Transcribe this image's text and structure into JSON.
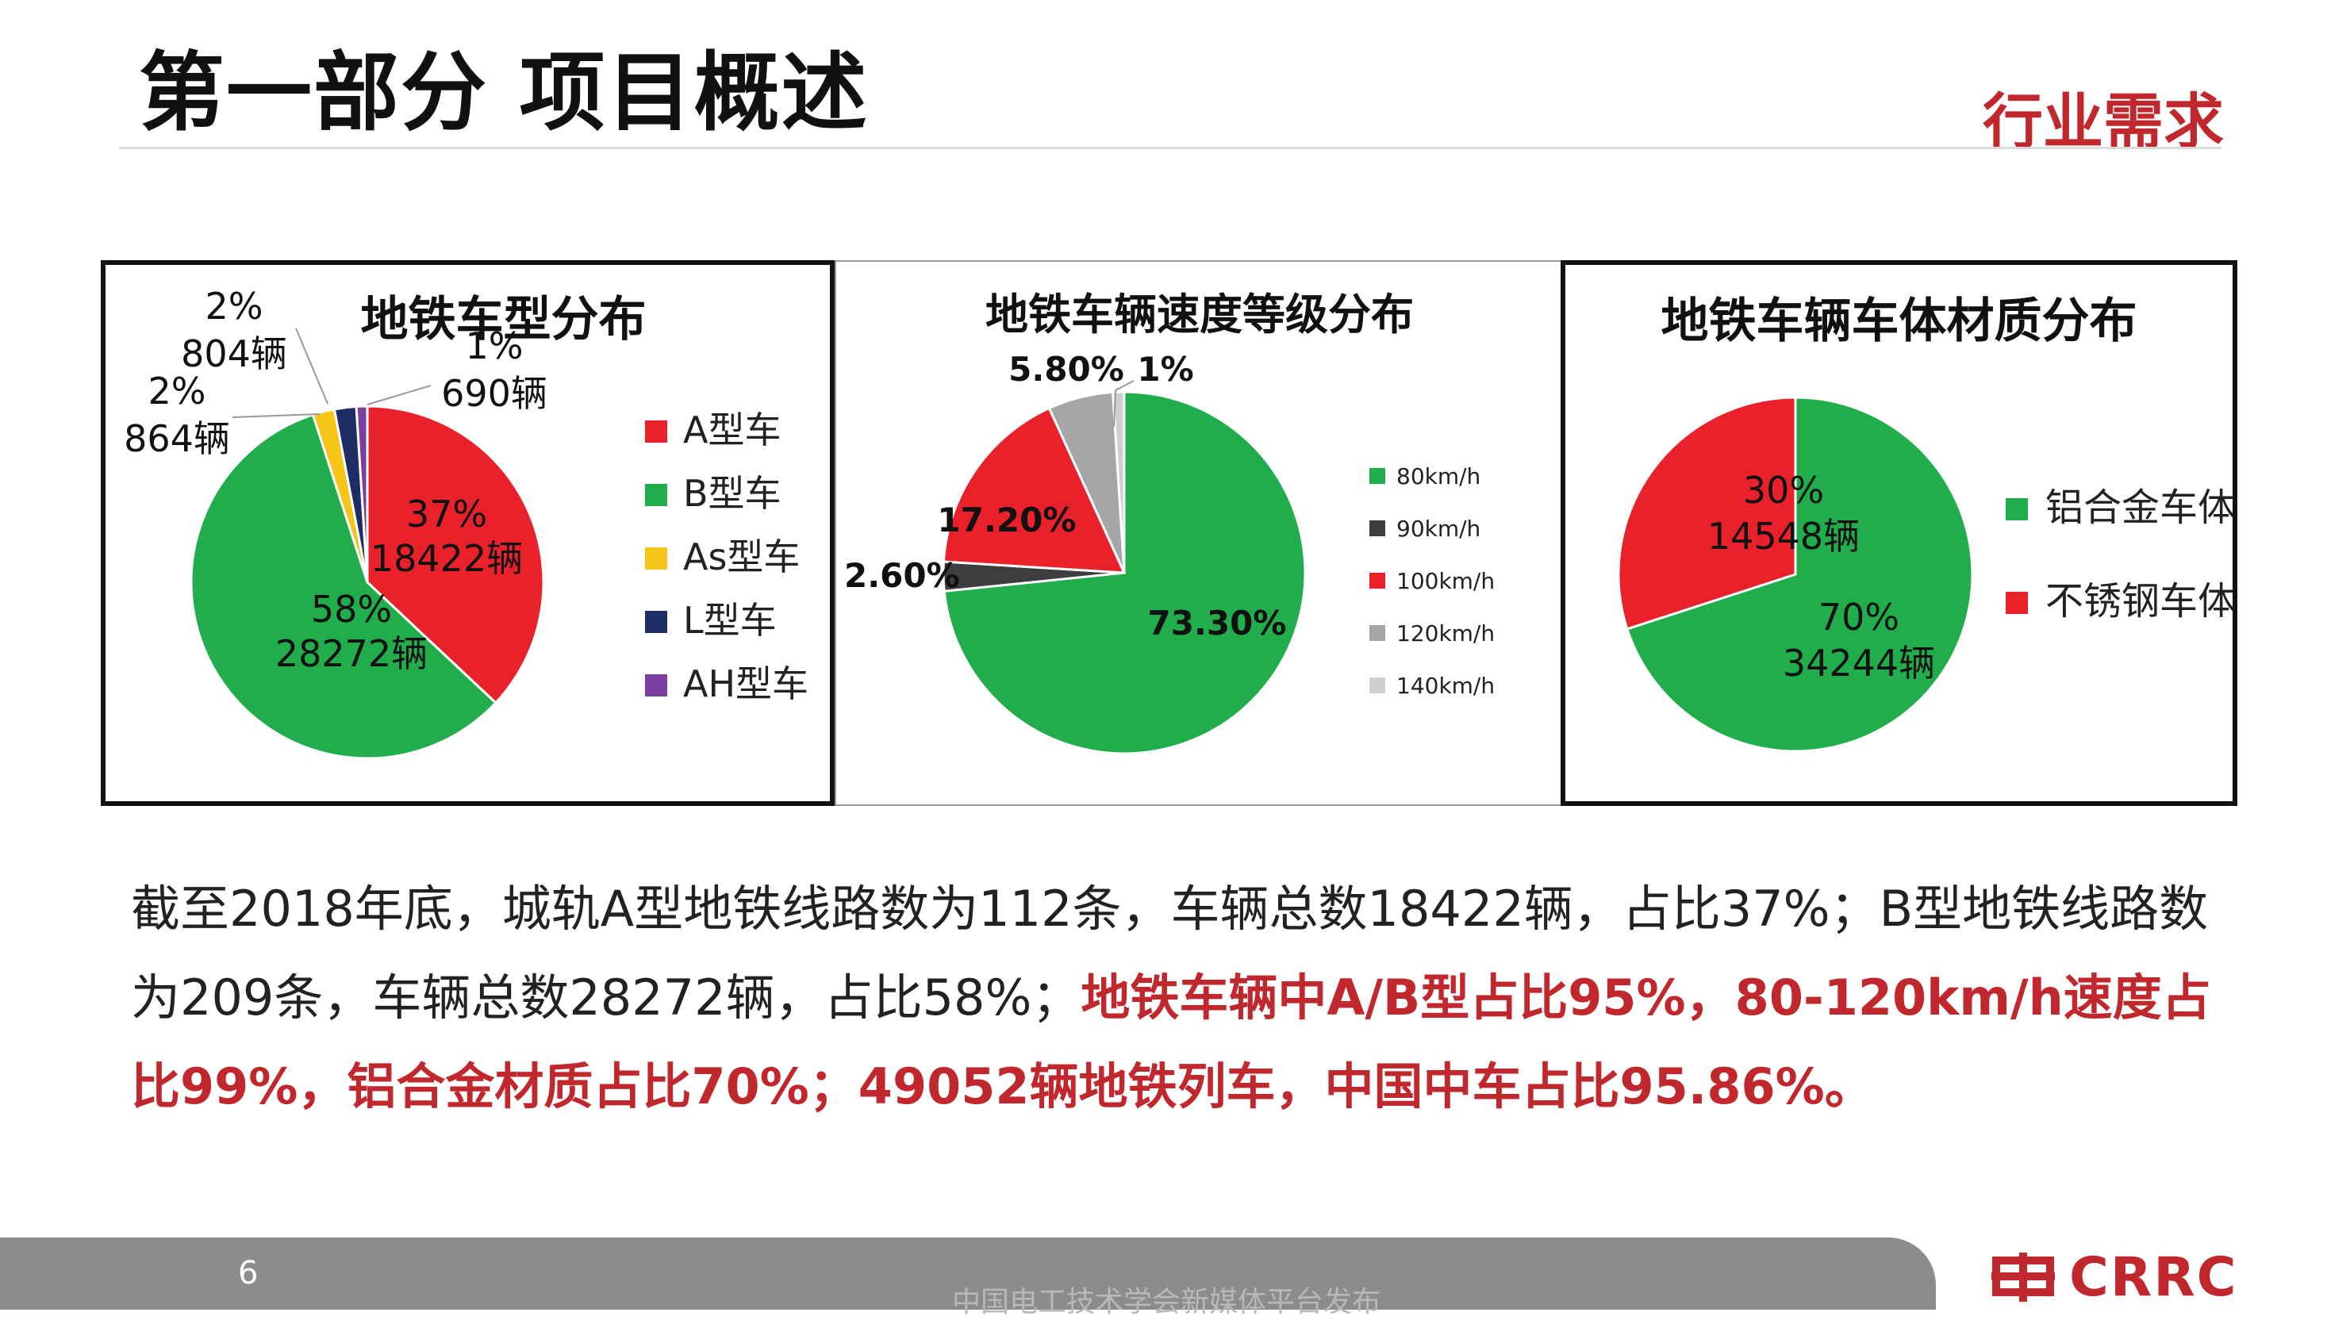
{
  "header": {
    "title": "第一部分  项目概述",
    "section_tag": "行业需求"
  },
  "colors": {
    "red": "#e8212b",
    "green": "#21ad4b",
    "yellow": "#f5c518",
    "navy": "#1f2d66",
    "purple": "#7b3fa0",
    "dark_gray": "#3d3d3d",
    "gray": "#a6a6a6",
    "light_gray": "#cfcfcf",
    "accent": "#c0282d"
  },
  "chart_data": [
    {
      "type": "pie",
      "title": "地铁车型分布",
      "slices": [
        {
          "name": "A型车",
          "value": 37,
          "color": "#e8212b",
          "label_lines": [
            "37%",
            "18422辆"
          ]
        },
        {
          "name": "B型车",
          "value": 58,
          "color": "#21ad4b",
          "label_lines": [
            "58%",
            "28272辆"
          ]
        },
        {
          "name": "As型车",
          "value": 2,
          "color": "#f5c518",
          "label_lines": [
            "2%",
            "864辆"
          ]
        },
        {
          "name": "L型车",
          "value": 2,
          "color": "#1f2d66",
          "label_lines": [
            "2%",
            "804辆"
          ]
        },
        {
          "name": "AH型车",
          "value": 1,
          "color": "#7b3fa0",
          "label_lines": [
            "1%",
            "690辆"
          ]
        }
      ],
      "legend": [
        "A型车",
        "B型车",
        "As型车",
        "L型车",
        "AH型车"
      ],
      "legend_position": "right"
    },
    {
      "type": "pie",
      "title": "地铁车辆速度等级分布",
      "slices": [
        {
          "name": "80km/h",
          "value": 73.3,
          "color": "#21ad4b",
          "label": "73.30%"
        },
        {
          "name": "90km/h",
          "value": 2.6,
          "color": "#3d3d3d",
          "label": "2.60%"
        },
        {
          "name": "100km/h",
          "value": 17.2,
          "color": "#e8212b",
          "label": "17.20%"
        },
        {
          "name": "120km/h",
          "value": 5.8,
          "color": "#a6a6a6",
          "label": "5.80%"
        },
        {
          "name": "140km/h",
          "value": 1,
          "color": "#cfcfcf",
          "label": "1%"
        }
      ],
      "legend": [
        "80km/h",
        "90km/h",
        "100km/h",
        "120km/h",
        "140km/h"
      ],
      "legend_position": "right"
    },
    {
      "type": "pie",
      "title": "地铁车辆车体材质分布",
      "slices": [
        {
          "name": "铝合金车体",
          "value": 70,
          "color": "#21ad4b",
          "label_lines": [
            "70%",
            "34244辆"
          ]
        },
        {
          "name": "不锈钢车体",
          "value": 30,
          "color": "#e8212b",
          "label_lines": [
            "30%",
            "14548辆"
          ]
        }
      ],
      "legend": [
        "铝合金车体",
        "不锈钢车体"
      ],
      "legend_position": "right"
    }
  ],
  "summary": {
    "plain_1": "截至2018年底，城轨A型地铁线路数为112条，车辆总数18422辆，占比37%；B型地铁线路数为209条，车辆总数28272辆，占比58%；",
    "highlight": "地铁车辆中A/B型占比95%，80-120km/h速度占比99%，铝合金材质占比70%；49052辆地铁列车，中国中车占比95.86%。"
  },
  "footer": {
    "page_number": "6",
    "watermark": "中国电工技术学会新媒体平台发布",
    "logo_text": "CRRC"
  }
}
